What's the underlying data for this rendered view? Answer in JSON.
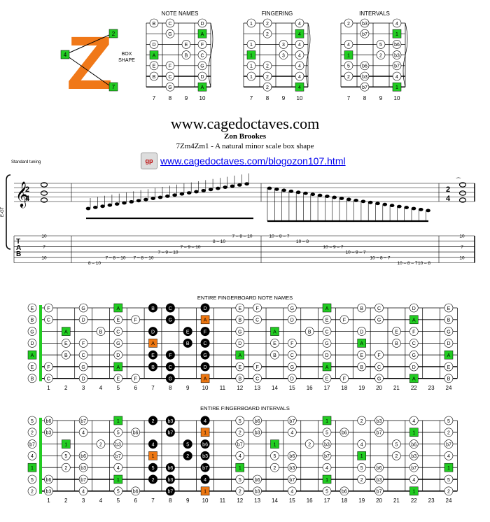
{
  "logo": {
    "letter": "Z",
    "box_notes": [
      "2",
      "4",
      "7"
    ]
  },
  "shape_label": [
    "BOX",
    "SHAPE"
  ],
  "mini_diagrams": [
    {
      "title": "NOTE NAMES",
      "frets": [
        "7",
        "8",
        "9",
        "10"
      ],
      "rows": [
        [
          "B",
          "C",
          "",
          "D"
        ],
        [
          "",
          "G",
          "",
          "A"
        ],
        [
          "D",
          "",
          "E",
          "F"
        ],
        [
          "A",
          "",
          "B",
          "C"
        ],
        [
          "E",
          "F",
          "",
          "G"
        ],
        [
          "B",
          "C",
          "",
          "D"
        ],
        [
          "",
          "G",
          "",
          "A"
        ]
      ],
      "hl": [
        1,
        3,
        6
      ]
    },
    {
      "title": "FINGERING",
      "frets": [
        "7",
        "8",
        "9",
        "10"
      ],
      "rows": [
        [
          "1",
          "2",
          "",
          "4"
        ],
        [
          "",
          "2",
          "",
          "4"
        ],
        [
          "1",
          "",
          "3",
          "4"
        ],
        [
          "1",
          "",
          "3",
          "4"
        ],
        [
          "1",
          "2",
          "",
          "4"
        ],
        [
          "1",
          "2",
          "",
          "4"
        ],
        [
          "",
          "2",
          "",
          "4"
        ]
      ],
      "hl": [
        1,
        3,
        6
      ]
    },
    {
      "title": "INTERVALS",
      "frets": [
        "7",
        "8",
        "9",
        "10"
      ],
      "rows": [
        [
          "2",
          "b3",
          "",
          "4"
        ],
        [
          "",
          "b7",
          "",
          "1"
        ],
        [
          "4",
          "",
          "5",
          "b6"
        ],
        [
          "1",
          "",
          "2",
          "b3"
        ],
        [
          "5",
          "b6",
          "",
          "b7"
        ],
        [
          "2",
          "b3",
          "",
          "4"
        ],
        [
          "",
          "b7",
          "",
          "1"
        ]
      ],
      "hl": [
        1,
        3,
        6
      ]
    }
  ],
  "header": {
    "site": "www.cagedoctaves.com",
    "author": "Zon Brookes",
    "subtitle": "7Zm4Zm1 - A natural minor scale box shape",
    "link": "www.cagedoctaves.com/blogozon107.html",
    "tuning": "Standard tuning"
  },
  "tab": {
    "clef_label": "E-GT",
    "time_sig": [
      "2",
      "4"
    ],
    "tab_letters": [
      "T",
      "A",
      "B"
    ],
    "opening_chord": [
      "10",
      "7",
      "10"
    ],
    "closing_chord": [
      "10",
      "7",
      "10"
    ],
    "ascending": [
      "8 – 10",
      "7 – 8 – 10",
      "7 – 8 – 10",
      "7 – 9 – 10",
      "7 – 9 – 10",
      "8 – 10",
      "7 – 8 – 10"
    ],
    "descending": [
      "10 – 8 – 7",
      "10 – 8",
      "10 – 9 – 7",
      "10 – 9 – 7",
      "10 – 8 – 7",
      "10 – 8 – 7",
      "10 – 8"
    ]
  },
  "board_notes": {
    "title": "ENTIRE FINGERBOARD NOTE NAMES",
    "open": [
      "E",
      "B",
      "G",
      "D",
      "A",
      "E",
      "B"
    ],
    "frets": [
      "1",
      "2",
      "3",
      "4",
      "5",
      "6",
      "7",
      "8",
      "9",
      "10",
      "11",
      "12",
      "13",
      "14",
      "15",
      "16",
      "17",
      "18",
      "19",
      "20",
      "21",
      "22",
      "23",
      "24"
    ],
    "rows": [
      [
        "F",
        "",
        "G",
        "",
        "A",
        "",
        "B",
        "C",
        "",
        "D",
        "",
        "E",
        "F",
        "",
        "G",
        "",
        "A",
        "",
        "B",
        "C",
        "",
        "D",
        "",
        "E"
      ],
      [
        "C",
        "",
        "D",
        "",
        "E",
        "F",
        "",
        "G",
        "",
        "A",
        "",
        "B",
        "C",
        "",
        "D",
        "",
        "E",
        "F",
        "",
        "G",
        "",
        "A",
        "",
        "B"
      ],
      [
        "",
        "A",
        "",
        "B",
        "C",
        "",
        "D",
        "",
        "E",
        "F",
        "",
        "G",
        "",
        "A",
        "",
        "B",
        "C",
        "",
        "D",
        "",
        "E",
        "F",
        "",
        "G"
      ],
      [
        "",
        "E",
        "F",
        "",
        "G",
        "",
        "A",
        "",
        "B",
        "C",
        "",
        "D",
        "",
        "E",
        "F",
        "",
        "G",
        "",
        "A",
        "",
        "B",
        "C",
        "",
        "D"
      ],
      [
        "",
        "B",
        "C",
        "",
        "D",
        "",
        "E",
        "F",
        "",
        "G",
        "",
        "A",
        "",
        "B",
        "C",
        "",
        "D",
        "",
        "E",
        "F",
        "",
        "G",
        "",
        "A"
      ],
      [
        "F",
        "",
        "G",
        "",
        "A",
        "",
        "B",
        "C",
        "",
        "D",
        "",
        "E",
        "F",
        "",
        "G",
        "",
        "A",
        "",
        "B",
        "C",
        "",
        "D",
        "",
        "E"
      ],
      [
        "C",
        "",
        "D",
        "",
        "E",
        "F",
        "",
        "G",
        "",
        "A",
        "",
        "B",
        "C",
        "",
        "D",
        "",
        "E",
        "F",
        "",
        "G",
        "",
        "A",
        "",
        "B"
      ]
    ]
  },
  "board_intervals": {
    "title": "ENTIRE FINGERBOARD INTERVALS",
    "open": [
      "5",
      "2",
      "b7",
      "4",
      "1",
      "5",
      "2"
    ],
    "frets": [
      "1",
      "2",
      "3",
      "4",
      "5",
      "6",
      "7",
      "8",
      "9",
      "10",
      "11",
      "12",
      "13",
      "14",
      "15",
      "16",
      "17",
      "18",
      "19",
      "20",
      "21",
      "22",
      "23",
      "24"
    ],
    "rows": [
      [
        "b6",
        "",
        "b7",
        "",
        "1",
        "",
        "2",
        "b3",
        "",
        "4",
        "",
        "5",
        "b6",
        "",
        "b7",
        "",
        "1",
        "",
        "2",
        "b3",
        "",
        "4",
        "",
        "5"
      ],
      [
        "b3",
        "",
        "4",
        "",
        "5",
        "b6",
        "",
        "b7",
        "",
        "1",
        "",
        "2",
        "b3",
        "",
        "4",
        "",
        "5",
        "b6",
        "",
        "b7",
        "",
        "1",
        "",
        "2"
      ],
      [
        "",
        "1",
        "",
        "2",
        "b3",
        "",
        "4",
        "",
        "5",
        "b6",
        "",
        "b7",
        "",
        "1",
        "",
        "2",
        "b3",
        "",
        "4",
        "",
        "5",
        "b6",
        "",
        "b7"
      ],
      [
        "",
        "5",
        "b6",
        "",
        "b7",
        "",
        "1",
        "",
        "2",
        "b3",
        "",
        "4",
        "",
        "5",
        "b6",
        "",
        "b7",
        "",
        "1",
        "",
        "2",
        "b3",
        "",
        "4"
      ],
      [
        "",
        "2",
        "b3",
        "",
        "4",
        "",
        "5",
        "b6",
        "",
        "b7",
        "",
        "1",
        "",
        "2",
        "b3",
        "",
        "4",
        "",
        "5",
        "b6",
        "",
        "b7",
        "",
        "1"
      ],
      [
        "b6",
        "",
        "b7",
        "",
        "1",
        "",
        "2",
        "b3",
        "",
        "4",
        "",
        "5",
        "b6",
        "",
        "b7",
        "",
        "1",
        "",
        "2",
        "b3",
        "",
        "4",
        "",
        "5"
      ],
      [
        "b3",
        "",
        "4",
        "",
        "5",
        "b6",
        "",
        "b7",
        "",
        "1",
        "",
        "2",
        "b3",
        "",
        "4",
        "",
        "5",
        "b6",
        "",
        "b7",
        "",
        "1",
        "",
        "2"
      ]
    ]
  },
  "colors": {
    "root": "#22cc22",
    "root_box_frame": "#111111",
    "highlight": "#ee7711",
    "logo": "#f07818",
    "link": "#0000ee"
  }
}
